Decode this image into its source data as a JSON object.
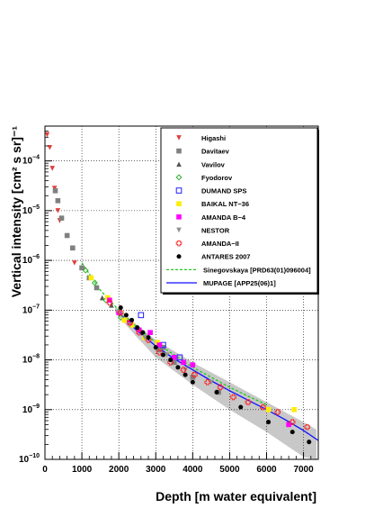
{
  "chart_data": {
    "type": "scatter",
    "xlabel": "Depth [m water equivalent]",
    "ylabel": "Vertical intensity [cm² s sr]⁻¹",
    "xlim": [
      0,
      7400
    ],
    "ylim_log10": [
      -10,
      -3.3
    ],
    "x_scale": "linear",
    "y_scale": "log",
    "grid": true,
    "legend_position": "top-right",
    "x_ticks": [
      {
        "v": 0,
        "label": "0"
      },
      {
        "v": 1000,
        "label": "1000"
      },
      {
        "v": 2000,
        "label": "2000"
      },
      {
        "v": 3000,
        "label": "3000"
      },
      {
        "v": 4000,
        "label": "4000"
      },
      {
        "v": 5000,
        "label": "5000"
      },
      {
        "v": 6000,
        "label": "6000"
      },
      {
        "v": 7000,
        "label": "7000"
      }
    ],
    "y_ticks": [
      {
        "e": -10,
        "label": "10",
        "sup": "−10"
      },
      {
        "e": -9,
        "label": "10",
        "sup": "−9"
      },
      {
        "e": -8,
        "label": "10",
        "sup": "−8"
      },
      {
        "e": -7,
        "label": "10",
        "sup": "−7"
      },
      {
        "e": -6,
        "label": "10",
        "sup": "−6"
      },
      {
        "e": -5,
        "label": "10",
        "sup": "−5"
      },
      {
        "e": -4,
        "label": "10",
        "sup": "−4"
      }
    ],
    "series": [
      {
        "name": "Higashi",
        "marker": "tri-down",
        "color": "#e0403a",
        "points": [
          [
            60,
            -3.47
          ],
          [
            130,
            -3.73
          ],
          [
            200,
            -4.15
          ],
          [
            260,
            -4.55
          ],
          [
            350,
            -5.0
          ],
          [
            400,
            -5.2
          ],
          [
            800,
            -6.05
          ]
        ]
      },
      {
        "name": "Davitaev",
        "marker": "square",
        "color": "#808080",
        "points": [
          [
            280,
            -4.6
          ],
          [
            350,
            -4.8
          ],
          [
            450,
            -5.15
          ],
          [
            600,
            -5.5
          ],
          [
            750,
            -5.75
          ],
          [
            1000,
            -6.15
          ],
          [
            1200,
            -6.35
          ],
          [
            1400,
            -6.55
          ],
          [
            3100,
            -7.8
          ],
          [
            3200,
            -7.75
          ],
          [
            3500,
            -8.05
          ],
          [
            4000,
            -8.35
          ],
          [
            4700,
            -8.65
          ]
        ]
      },
      {
        "name": "Vavilov",
        "marker": "tri-up",
        "color": "#555555",
        "points": [
          [
            1550,
            -6.75
          ],
          [
            1800,
            -6.9
          ]
        ]
      },
      {
        "name": "Fyodorov",
        "marker": "diamond-open",
        "color": "#30b030",
        "points": [
          [
            1100,
            -6.2
          ],
          [
            1350,
            -6.45
          ],
          [
            1650,
            -6.8
          ],
          [
            2050,
            -7.15
          ]
        ]
      },
      {
        "name": "DUMAND SPS",
        "marker": "square-open",
        "color": "#2020ff",
        "points": [
          [
            2600,
            -7.1
          ],
          [
            3200,
            -7.7
          ],
          [
            3650,
            -7.95
          ]
        ]
      },
      {
        "name": "BAIKAL NT−36",
        "marker": "square",
        "color": "#ffee00",
        "points": [
          [
            1250,
            -6.35
          ],
          [
            1700,
            -6.75
          ],
          [
            2150,
            -7.2
          ],
          [
            2350,
            -7.3
          ],
          [
            2700,
            -7.55
          ],
          [
            3050,
            -7.65
          ],
          [
            6050,
            -9.0
          ],
          [
            6750,
            -9.0
          ]
        ]
      },
      {
        "name": "AMANDA B−4",
        "marker": "square",
        "color": "#ff00ff",
        "points": [
          [
            1750,
            -6.8
          ],
          [
            2000,
            -7.05
          ],
          [
            2300,
            -7.25
          ],
          [
            2550,
            -7.4
          ],
          [
            2850,
            -7.45
          ],
          [
            3100,
            -7.7
          ],
          [
            3500,
            -7.95
          ],
          [
            3750,
            -8.05
          ],
          [
            4000,
            -8.1
          ],
          [
            6600,
            -9.3
          ]
        ]
      },
      {
        "name": "NESTOR",
        "marker": "tri-down",
        "color": "#909090",
        "points": [
          [
            2000,
            -7.05
          ],
          [
            2300,
            -7.3
          ],
          [
            2700,
            -7.55
          ],
          [
            3300,
            -7.9
          ],
          [
            3800,
            -8.2
          ],
          [
            4500,
            -8.45
          ]
        ]
      },
      {
        "name": "AMANDA−II",
        "marker": "cross-open",
        "color": "#ff2020",
        "points": [
          [
            1750,
            -6.85
          ],
          [
            2050,
            -7.05
          ],
          [
            2300,
            -7.25
          ],
          [
            2550,
            -7.45
          ],
          [
            2800,
            -7.6
          ],
          [
            3100,
            -7.85
          ],
          [
            3400,
            -8.05
          ],
          [
            3750,
            -8.2
          ],
          [
            4050,
            -8.3
          ],
          [
            4400,
            -8.45
          ],
          [
            4750,
            -8.55
          ],
          [
            5100,
            -8.75
          ],
          [
            5500,
            -8.85
          ],
          [
            5900,
            -8.95
          ],
          [
            6300,
            -9.05
          ],
          [
            6700,
            -9.25
          ],
          [
            7100,
            -9.35
          ]
        ]
      },
      {
        "name": "ANTARES 2007",
        "marker": "circle",
        "color": "#000000",
        "points": [
          [
            2050,
            -6.95
          ],
          [
            2200,
            -7.1
          ],
          [
            2350,
            -7.2
          ],
          [
            2500,
            -7.35
          ],
          [
            2650,
            -7.45
          ],
          [
            2800,
            -7.55
          ],
          [
            3000,
            -7.75
          ],
          [
            3200,
            -7.9
          ],
          [
            3400,
            -8.0
          ],
          [
            3600,
            -8.15
          ],
          [
            3800,
            -8.3
          ],
          [
            4000,
            -8.45
          ],
          [
            4650,
            -8.65
          ],
          [
            5300,
            -8.95
          ],
          [
            6050,
            -9.25
          ],
          [
            6700,
            -9.45
          ],
          [
            7150,
            -9.65
          ]
        ]
      }
    ],
    "curves": [
      {
        "name": "Sinegovskaya [PRD63(01)096004]",
        "style": "dashed",
        "color": "#22cc22",
        "points": [
          [
            1000,
            -6.05
          ],
          [
            1500,
            -6.6
          ],
          [
            2000,
            -7.0
          ],
          [
            2500,
            -7.35
          ],
          [
            3000,
            -7.65
          ],
          [
            3500,
            -7.9
          ],
          [
            4000,
            -8.15
          ],
          [
            4500,
            -8.35
          ],
          [
            5000,
            -8.55
          ],
          [
            5500,
            -8.73
          ],
          [
            6000,
            -8.9
          ]
        ]
      },
      {
        "name": "MUPAGE [APP25(06)1]",
        "style": "solid",
        "color": "#1010ff",
        "points": [
          [
            2000,
            -7.05
          ],
          [
            2500,
            -7.42
          ],
          [
            3000,
            -7.72
          ],
          [
            3500,
            -7.98
          ],
          [
            4000,
            -8.2
          ],
          [
            4500,
            -8.42
          ],
          [
            5000,
            -8.62
          ],
          [
            5500,
            -8.81
          ],
          [
            6000,
            -9.0
          ],
          [
            6500,
            -9.2
          ],
          [
            7000,
            -9.42
          ],
          [
            7400,
            -9.62
          ]
        ]
      }
    ],
    "uncertainty_band": {
      "color": "#c8c8c8",
      "upper": [
        [
          1900,
          -6.92
        ],
        [
          2500,
          -7.3
        ],
        [
          3000,
          -7.6
        ],
        [
          4000,
          -8.05
        ],
        [
          5000,
          -8.45
        ],
        [
          6000,
          -8.85
        ],
        [
          7000,
          -9.25
        ],
        [
          7350,
          -9.4
        ]
      ],
      "lower": [
        [
          1900,
          -7.05
        ],
        [
          2500,
          -7.55
        ],
        [
          3000,
          -7.95
        ],
        [
          4000,
          -8.5
        ],
        [
          5000,
          -9.0
        ],
        [
          6000,
          -9.45
        ],
        [
          7000,
          -9.95
        ],
        [
          7350,
          -10.0
        ]
      ]
    }
  }
}
